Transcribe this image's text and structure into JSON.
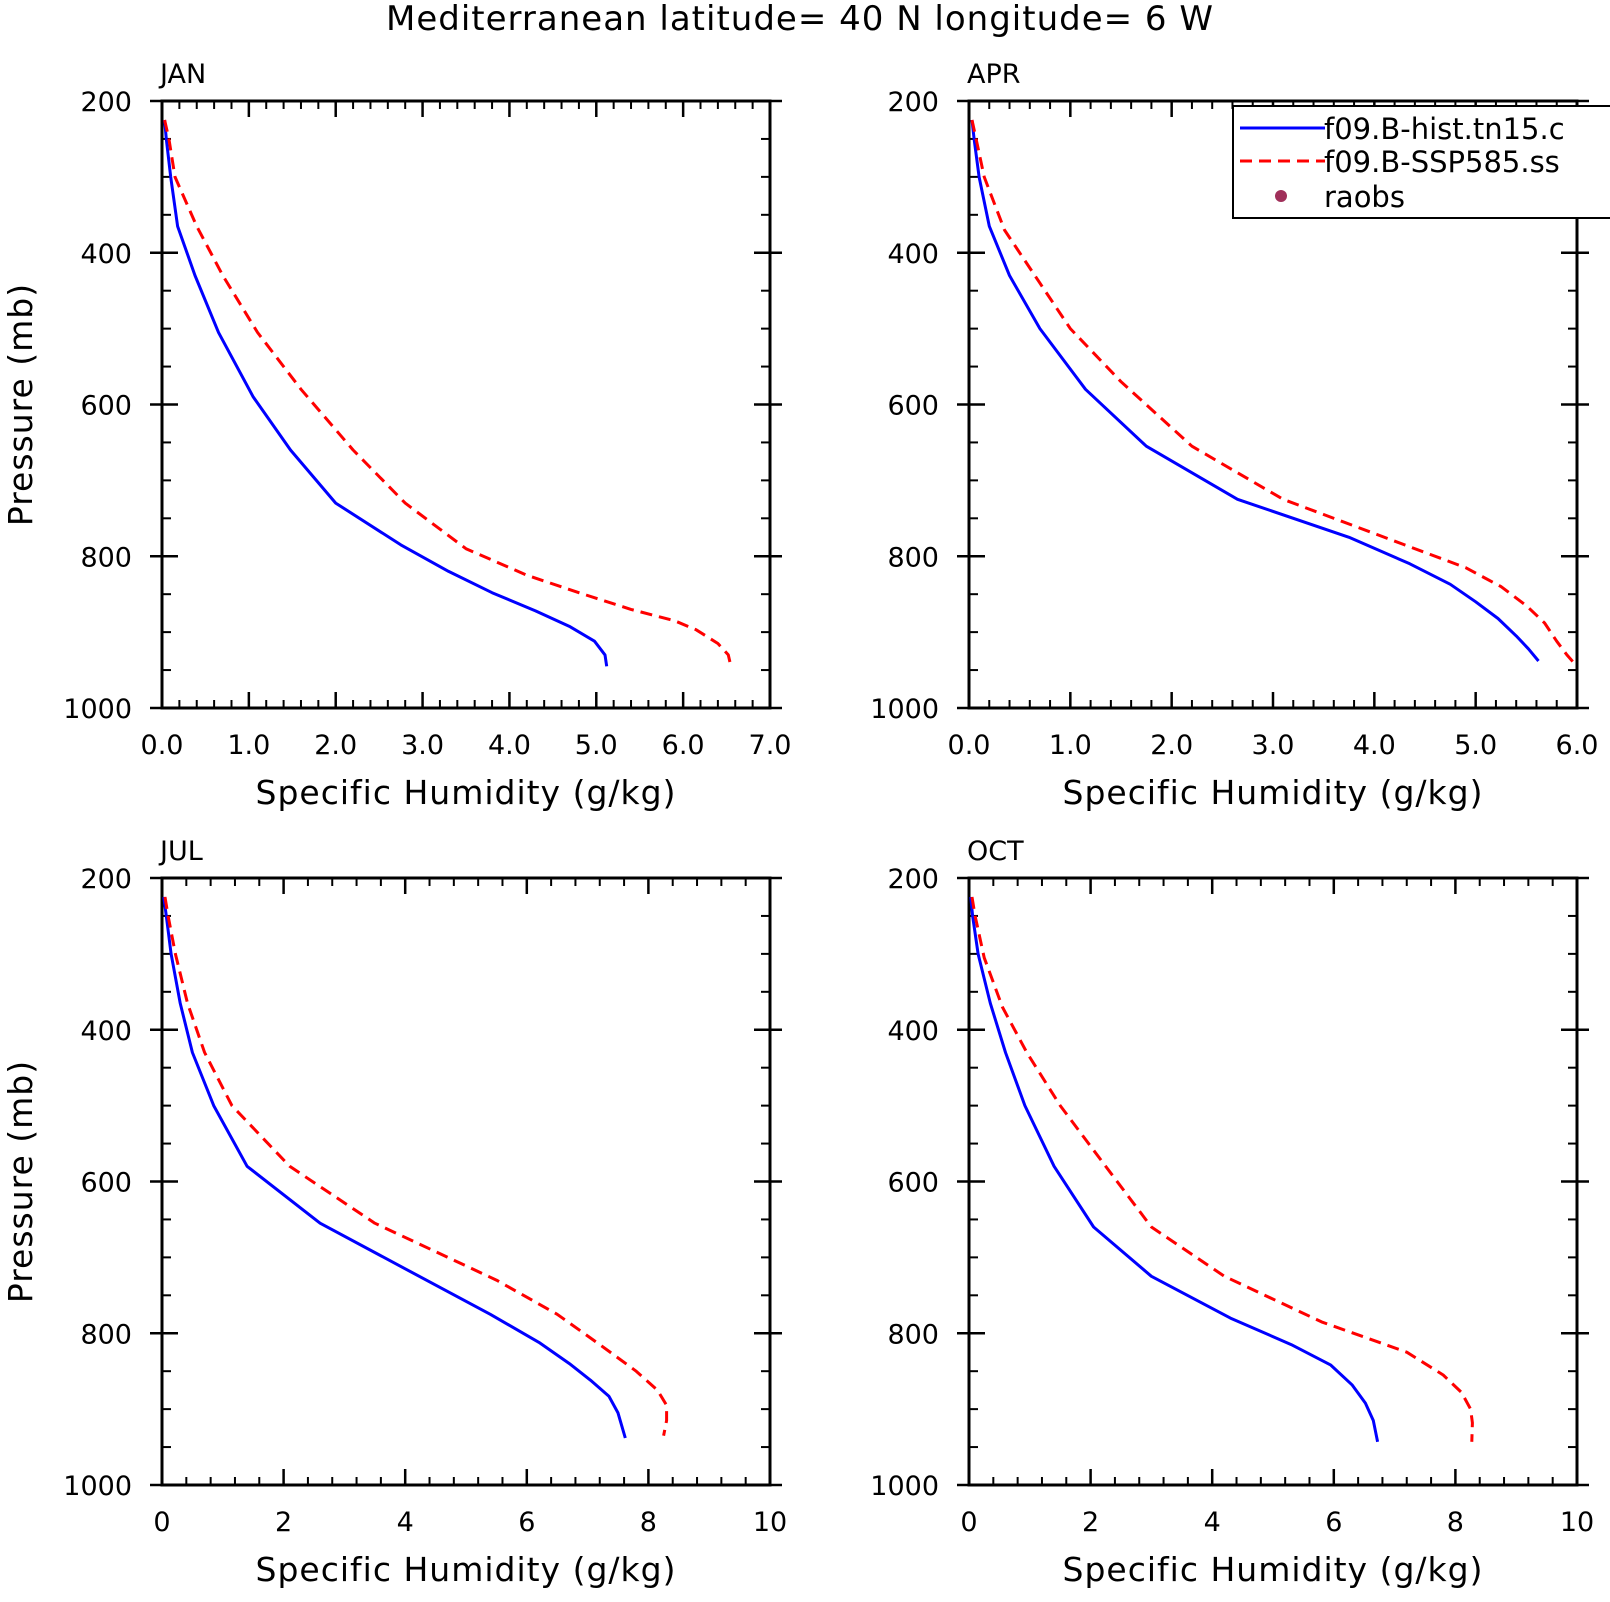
{
  "figure": {
    "title": "Mediterranean  latitude= 40 N longitude= 6 W"
  },
  "legend": {
    "entries": [
      {
        "name": "f09.B-hist.tn15.c",
        "color": "#0000ff",
        "style": "solid"
      },
      {
        "name": "f09.B-SSP585.ss",
        "color": "#ff0000",
        "style": "dashed"
      },
      {
        "name": "raobs",
        "color": "#a0305a",
        "style": "marker"
      }
    ]
  },
  "chart_data": [
    {
      "type": "line",
      "panel_label": "JAN",
      "xlabel": "Specific Humidity (g/kg)",
      "ylabel": "Pressure (mb)",
      "xlim": [
        0,
        7
      ],
      "ylim": [
        200,
        1000
      ],
      "y_inverted": true,
      "xticks": [
        "0.0",
        "1.0",
        "2.0",
        "3.0",
        "4.0",
        "5.0",
        "6.0",
        "7.0"
      ],
      "yticks": [
        "200",
        "400",
        "600",
        "800",
        "1000"
      ],
      "series": [
        {
          "name": "f09.B-hist.tn15.c",
          "color": "#0000ff",
          "dash": false,
          "points": [
            [
              0.03,
              225
            ],
            [
              0.05,
              250
            ],
            [
              0.1,
              300
            ],
            [
              0.18,
              365
            ],
            [
              0.38,
              430
            ],
            [
              0.65,
              505
            ],
            [
              1.05,
              590
            ],
            [
              1.48,
              660
            ],
            [
              2.0,
              730
            ],
            [
              2.75,
              785
            ],
            [
              3.3,
              820
            ],
            [
              3.8,
              848
            ],
            [
              4.3,
              872
            ],
            [
              4.7,
              893
            ],
            [
              4.98,
              912
            ],
            [
              5.1,
              930
            ],
            [
              5.12,
              945
            ]
          ]
        },
        {
          "name": "f09.B-SSP585.ss",
          "color": "#ff0000",
          "dash": true,
          "points": [
            [
              0.03,
              225
            ],
            [
              0.08,
              250
            ],
            [
              0.15,
              300
            ],
            [
              0.4,
              365
            ],
            [
              0.7,
              430
            ],
            [
              1.1,
              505
            ],
            [
              1.6,
              580
            ],
            [
              2.2,
              660
            ],
            [
              2.8,
              730
            ],
            [
              3.5,
              790
            ],
            [
              4.2,
              825
            ],
            [
              4.8,
              848
            ],
            [
              5.4,
              870
            ],
            [
              5.9,
              885
            ],
            [
              6.15,
              897
            ],
            [
              6.4,
              915
            ],
            [
              6.52,
              930
            ],
            [
              6.55,
              945
            ]
          ]
        }
      ]
    },
    {
      "type": "line",
      "panel_label": "APR",
      "xlabel": "Specific Humidity (g/kg)",
      "ylabel": "",
      "xlim": [
        0,
        6
      ],
      "ylim": [
        200,
        1000
      ],
      "y_inverted": true,
      "xticks": [
        "0.0",
        "1.0",
        "2.0",
        "3.0",
        "4.0",
        "5.0",
        "6.0"
      ],
      "yticks": [
        "200",
        "400",
        "600",
        "800",
        "1000"
      ],
      "series": [
        {
          "name": "f09.B-hist.tn15.c",
          "color": "#0000ff",
          "dash": false,
          "points": [
            [
              0.03,
              225
            ],
            [
              0.05,
              250
            ],
            [
              0.1,
              300
            ],
            [
              0.2,
              365
            ],
            [
              0.4,
              430
            ],
            [
              0.7,
              500
            ],
            [
              1.15,
              580
            ],
            [
              1.75,
              655
            ],
            [
              2.65,
              725
            ],
            [
              3.75,
              775
            ],
            [
              4.35,
              810
            ],
            [
              4.75,
              837
            ],
            [
              5.0,
              860
            ],
            [
              5.22,
              882
            ],
            [
              5.4,
              905
            ],
            [
              5.52,
              922
            ],
            [
              5.62,
              938
            ]
          ]
        },
        {
          "name": "f09.B-SSP585.ss",
          "color": "#ff0000",
          "dash": true,
          "points": [
            [
              0.03,
              225
            ],
            [
              0.07,
              250
            ],
            [
              0.15,
              300
            ],
            [
              0.35,
              370
            ],
            [
              0.7,
              440
            ],
            [
              1.0,
              500
            ],
            [
              1.5,
              570
            ],
            [
              2.2,
              655
            ],
            [
              3.1,
              725
            ],
            [
              4.3,
              785
            ],
            [
              4.9,
              815
            ],
            [
              5.25,
              840
            ],
            [
              5.5,
              865
            ],
            [
              5.68,
              888
            ],
            [
              5.8,
              912
            ],
            [
              5.9,
              930
            ],
            [
              6.0,
              945
            ]
          ]
        }
      ]
    },
    {
      "type": "line",
      "panel_label": "JUL",
      "xlabel": "Specific Humidity (g/kg)",
      "ylabel": "Pressure (mb)",
      "xlim": [
        0,
        10
      ],
      "ylim": [
        200,
        1000
      ],
      "y_inverted": true,
      "xticks": [
        "0",
        "2",
        "4",
        "6",
        "8",
        "10"
      ],
      "yticks": [
        "200",
        "400",
        "600",
        "800",
        "1000"
      ],
      "series": [
        {
          "name": "f09.B-hist.tn15.c",
          "color": "#0000ff",
          "dash": false,
          "points": [
            [
              0.03,
              225
            ],
            [
              0.07,
              250
            ],
            [
              0.15,
              300
            ],
            [
              0.3,
              365
            ],
            [
              0.5,
              430
            ],
            [
              0.85,
              500
            ],
            [
              1.4,
              580
            ],
            [
              2.6,
              655
            ],
            [
              4.0,
              715
            ],
            [
              5.4,
              775
            ],
            [
              6.2,
              812
            ],
            [
              6.7,
              840
            ],
            [
              7.05,
              862
            ],
            [
              7.35,
              883
            ],
            [
              7.5,
              905
            ],
            [
              7.62,
              938
            ]
          ]
        },
        {
          "name": "f09.B-SSP585.ss",
          "color": "#ff0000",
          "dash": true,
          "points": [
            [
              0.05,
              225
            ],
            [
              0.1,
              250
            ],
            [
              0.22,
              300
            ],
            [
              0.42,
              365
            ],
            [
              0.7,
              430
            ],
            [
              1.15,
              500
            ],
            [
              2.1,
              580
            ],
            [
              3.5,
              655
            ],
            [
              5.5,
              730
            ],
            [
              6.5,
              775
            ],
            [
              7.2,
              815
            ],
            [
              7.8,
              850
            ],
            [
              8.15,
              875
            ],
            [
              8.3,
              895
            ],
            [
              8.3,
              915
            ],
            [
              8.25,
              935
            ]
          ]
        }
      ]
    },
    {
      "type": "line",
      "panel_label": "OCT",
      "xlabel": "Specific Humidity (g/kg)",
      "ylabel": "",
      "xlim": [
        0,
        10
      ],
      "ylim": [
        200,
        1000
      ],
      "y_inverted": true,
      "xticks": [
        "0",
        "2",
        "4",
        "6",
        "8",
        "10"
      ],
      "yticks": [
        "200",
        "400",
        "600",
        "800",
        "1000"
      ],
      "series": [
        {
          "name": "f09.B-hist.tn15.c",
          "color": "#0000ff",
          "dash": false,
          "points": [
            [
              0.03,
              225
            ],
            [
              0.06,
              250
            ],
            [
              0.15,
              300
            ],
            [
              0.35,
              365
            ],
            [
              0.6,
              430
            ],
            [
              0.92,
              500
            ],
            [
              1.4,
              580
            ],
            [
              2.05,
              660
            ],
            [
              3.0,
              725
            ],
            [
              4.3,
              780
            ],
            [
              5.3,
              815
            ],
            [
              5.95,
              842
            ],
            [
              6.3,
              868
            ],
            [
              6.52,
              892
            ],
            [
              6.65,
              915
            ],
            [
              6.72,
              943
            ]
          ]
        },
        {
          "name": "f09.B-SSP585.ss",
          "color": "#ff0000",
          "dash": true,
          "points": [
            [
              0.05,
              225
            ],
            [
              0.1,
              250
            ],
            [
              0.25,
              305
            ],
            [
              0.55,
              370
            ],
            [
              0.95,
              430
            ],
            [
              1.5,
              500
            ],
            [
              2.2,
              575
            ],
            [
              3.0,
              660
            ],
            [
              4.2,
              725
            ],
            [
              5.8,
              785
            ],
            [
              7.2,
              825
            ],
            [
              7.8,
              855
            ],
            [
              8.1,
              878
            ],
            [
              8.25,
              900
            ],
            [
              8.28,
              918
            ],
            [
              8.27,
              943
            ]
          ]
        }
      ]
    }
  ]
}
